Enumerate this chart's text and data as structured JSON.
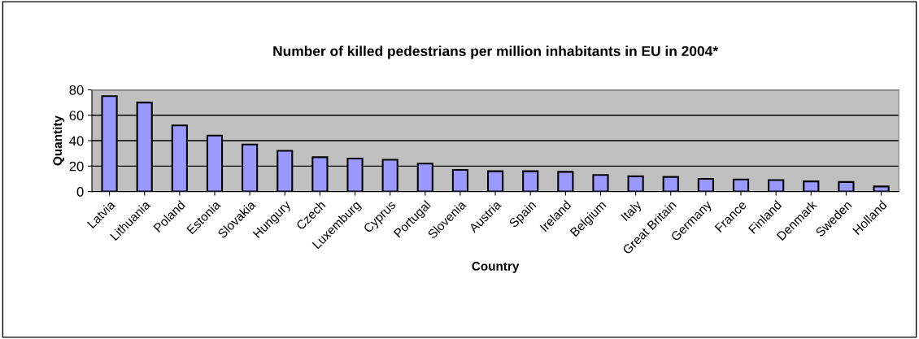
{
  "chart_data": {
    "type": "bar",
    "title": "Number of killed pedestrians per million inhabitants in EU in 2004*",
    "xlabel": "Country",
    "ylabel": "Quantity",
    "categories": [
      "Latvia",
      "Lithuania",
      "Poland",
      "Estonia",
      "Slovakia",
      "Hungury",
      "Czech",
      "Luxemburg",
      "Cyprus",
      "Portugal",
      "Slovenia",
      "Austria",
      "Spain",
      "Ireland",
      "Belgium",
      "Italy",
      "Great Britain",
      "Germany",
      "France",
      "Finland",
      "Denmark",
      "Sweden",
      "Holland"
    ],
    "values": [
      75,
      70,
      52,
      44,
      37,
      32,
      27,
      26,
      25,
      22,
      17,
      16,
      16,
      15.5,
      13,
      12,
      11.5,
      10,
      9.5,
      9,
      8,
      7.5,
      4
    ],
    "color": "#9999ff",
    "ylim": [
      0,
      80
    ],
    "yticks": [
      0,
      20,
      40,
      60,
      80
    ],
    "grid": "y",
    "legend": false
  }
}
